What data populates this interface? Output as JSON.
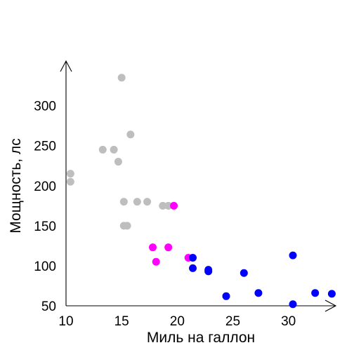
{
  "chart_data": {
    "type": "scatter",
    "title": "",
    "xlabel": "Миль на галлон",
    "ylabel": "Мощность, лс",
    "xlim": [
      10,
      34
    ],
    "ylim": [
      50,
      340
    ],
    "x_ticks": [
      10,
      15,
      20,
      25,
      30
    ],
    "y_ticks": [
      50,
      100,
      150,
      200,
      250,
      300
    ],
    "grid": false,
    "legend": "none",
    "series": [
      {
        "color": "#bebebe",
        "points": [
          {
            "x": 15.0,
            "y": 335
          },
          {
            "x": 15.8,
            "y": 264
          },
          {
            "x": 13.3,
            "y": 245
          },
          {
            "x": 14.3,
            "y": 245
          },
          {
            "x": 14.7,
            "y": 230
          },
          {
            "x": 10.4,
            "y": 215
          },
          {
            "x": 10.4,
            "y": 205
          },
          {
            "x": 15.2,
            "y": 180
          },
          {
            "x": 16.4,
            "y": 180
          },
          {
            "x": 17.3,
            "y": 180
          },
          {
            "x": 18.7,
            "y": 175
          },
          {
            "x": 19.2,
            "y": 175
          },
          {
            "x": 15.2,
            "y": 150
          },
          {
            "x": 15.5,
            "y": 150
          }
        ]
      },
      {
        "color": "#ff00ff",
        "points": [
          {
            "x": 19.7,
            "y": 175
          },
          {
            "x": 17.8,
            "y": 123
          },
          {
            "x": 19.2,
            "y": 123
          },
          {
            "x": 18.1,
            "y": 105
          },
          {
            "x": 21.0,
            "y": 110
          }
        ]
      },
      {
        "color": "#0000ff",
        "points": [
          {
            "x": 21.4,
            "y": 110
          },
          {
            "x": 21.4,
            "y": 97
          },
          {
            "x": 22.8,
            "y": 95
          },
          {
            "x": 22.8,
            "y": 93
          },
          {
            "x": 24.4,
            "y": 62
          },
          {
            "x": 26.0,
            "y": 91
          },
          {
            "x": 27.3,
            "y": 66
          },
          {
            "x": 30.4,
            "y": 113
          },
          {
            "x": 30.4,
            "y": 52
          },
          {
            "x": 32.4,
            "y": 66
          },
          {
            "x": 33.9,
            "y": 65
          }
        ]
      }
    ]
  }
}
